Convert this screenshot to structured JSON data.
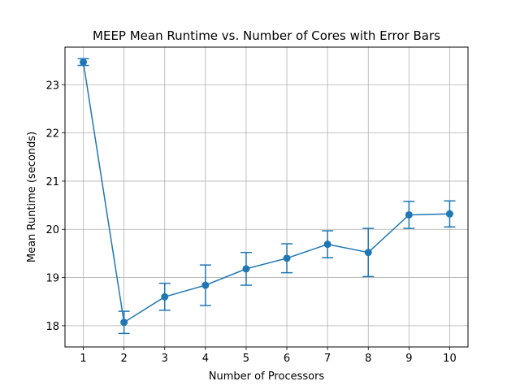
{
  "chart_data": {
    "type": "line",
    "title": "MEEP Mean Runtime vs. Number of Cores with Error Bars",
    "xlabel": "Number of Processors",
    "ylabel": "Mean Runtime (seconds)",
    "x": [
      1,
      2,
      3,
      4,
      5,
      6,
      7,
      8,
      9,
      10
    ],
    "series": [
      {
        "values": [
          23.47,
          18.07,
          18.6,
          18.84,
          19.18,
          19.4,
          19.69,
          19.52,
          20.3,
          20.32
        ],
        "err": [
          0.07,
          0.23,
          0.28,
          0.42,
          0.34,
          0.3,
          0.28,
          0.5,
          0.28,
          0.27
        ],
        "color": "#1f77b4",
        "marker": "circle"
      }
    ],
    "xticks": [
      1,
      2,
      3,
      4,
      5,
      6,
      7,
      8,
      9,
      10
    ],
    "yticks": [
      18,
      19,
      20,
      21,
      22,
      23
    ],
    "xlim": [
      0.55,
      10.45
    ],
    "ylim": [
      17.56,
      23.78
    ],
    "grid": true
  }
}
